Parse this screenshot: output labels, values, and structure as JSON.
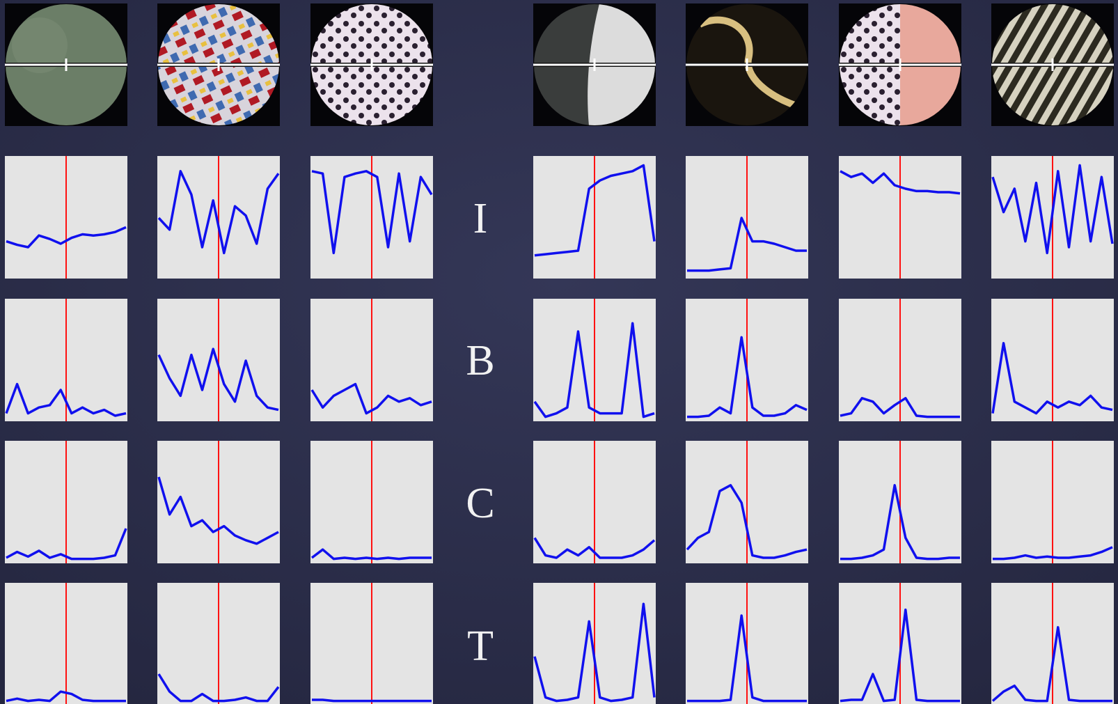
{
  "rows": [
    {
      "label": "I",
      "curves": [
        [
          30,
          27,
          25,
          35,
          32,
          28,
          33,
          36,
          35,
          36,
          38,
          42
        ],
        [
          50,
          40,
          90,
          70,
          25,
          65,
          20,
          60,
          52,
          28,
          75,
          88
        ],
        [
          90,
          88,
          20,
          85,
          88,
          90,
          85,
          25,
          88,
          30,
          85,
          70
        ],
        [
          18,
          19,
          20,
          21,
          22,
          75,
          82,
          86,
          88,
          90,
          95,
          30
        ],
        [
          5,
          5,
          5,
          6,
          7,
          50,
          30,
          30,
          28,
          25,
          22,
          22
        ],
        [
          90,
          85,
          88,
          80,
          88,
          78,
          75,
          73,
          73,
          72,
          72,
          71
        ],
        [
          85,
          55,
          75,
          30,
          80,
          20,
          90,
          25,
          95,
          30,
          85,
          28
        ]
      ]
    },
    {
      "label": "B",
      "curves": [
        [
          5,
          30,
          5,
          10,
          12,
          25,
          5,
          10,
          5,
          8,
          3,
          5
        ],
        [
          55,
          35,
          20,
          55,
          25,
          60,
          30,
          15,
          50,
          20,
          10,
          8
        ],
        [
          25,
          10,
          20,
          25,
          30,
          5,
          10,
          20,
          15,
          18,
          12,
          15
        ],
        [
          15,
          2,
          5,
          10,
          75,
          10,
          5,
          5,
          5,
          82,
          2,
          5
        ],
        [
          2,
          2,
          3,
          10,
          5,
          70,
          10,
          3,
          3,
          5,
          12,
          8
        ],
        [
          3,
          5,
          18,
          15,
          5,
          12,
          18,
          3,
          2,
          2,
          2,
          2
        ],
        [
          5,
          65,
          15,
          10,
          5,
          15,
          10,
          15,
          12,
          20,
          10,
          8
        ]
      ]
    },
    {
      "label": "C",
      "curves": [
        [
          3,
          8,
          4,
          9,
          3,
          6,
          2,
          2,
          2,
          3,
          5,
          28
        ],
        [
          72,
          40,
          55,
          30,
          35,
          25,
          30,
          22,
          18,
          15,
          20,
          25
        ],
        [
          3,
          10,
          2,
          3,
          2,
          3,
          2,
          3,
          2,
          3,
          3,
          3
        ],
        [
          20,
          5,
          3,
          10,
          5,
          12,
          3,
          3,
          3,
          5,
          10,
          18
        ],
        [
          10,
          20,
          25,
          60,
          65,
          50,
          5,
          3,
          3,
          5,
          8,
          10
        ],
        [
          2,
          2,
          3,
          5,
          10,
          65,
          20,
          3,
          2,
          2,
          3,
          3
        ],
        [
          2,
          2,
          3,
          5,
          3,
          4,
          3,
          3,
          4,
          5,
          8,
          12
        ]
      ]
    },
    {
      "label": "T",
      "curves": [
        [
          2,
          4,
          2,
          3,
          2,
          10,
          8,
          3,
          2,
          2,
          2,
          2
        ],
        [
          25,
          10,
          2,
          2,
          8,
          2,
          2,
          3,
          5,
          2,
          2,
          14
        ],
        [
          3,
          3,
          2,
          2,
          2,
          2,
          2,
          2,
          2,
          2,
          2,
          2
        ],
        [
          40,
          5,
          2,
          3,
          5,
          70,
          5,
          2,
          3,
          5,
          85,
          5
        ],
        [
          2,
          2,
          2,
          2,
          3,
          75,
          5,
          2,
          2,
          2,
          2,
          2
        ],
        [
          2,
          3,
          3,
          25,
          2,
          3,
          80,
          3,
          2,
          2,
          2,
          2
        ],
        [
          2,
          10,
          15,
          3,
          2,
          2,
          65,
          3,
          2,
          2,
          2,
          2
        ]
      ]
    }
  ]
}
